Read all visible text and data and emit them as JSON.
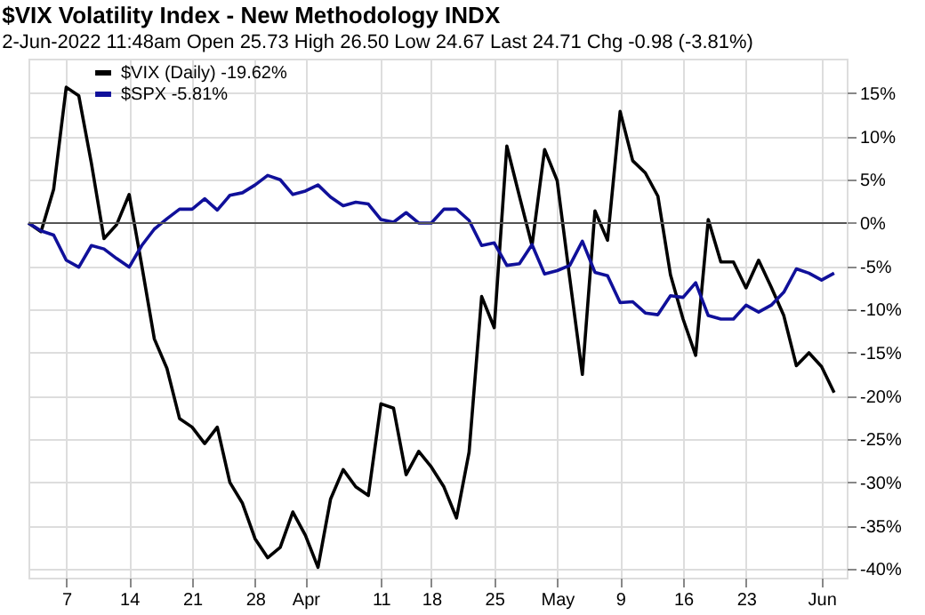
{
  "chart_data": {
    "type": "line",
    "title": "$VIX Volatility Index - New Methodology INDX",
    "subtitle": "2-Jun-2022 11:48am     Open 25.73  High 26.50  Low 24.67  Last 24.71  Chg -0.98 (-3.81%)",
    "categories": [
      null,
      null,
      null,
      "7",
      null,
      null,
      null,
      null,
      "14",
      null,
      null,
      null,
      null,
      "21",
      null,
      null,
      null,
      null,
      "28",
      null,
      null,
      null,
      "Apr",
      null,
      null,
      null,
      null,
      null,
      "11",
      null,
      null,
      null,
      "18",
      null,
      null,
      null,
      null,
      "25",
      null,
      null,
      null,
      null,
      "May",
      null,
      null,
      null,
      null,
      "9",
      null,
      null,
      null,
      null,
      "16",
      null,
      null,
      null,
      null,
      "23",
      null,
      null,
      null,
      null,
      null,
      "Jun",
      null
    ],
    "series": [
      {
        "name": "$VIX (Daily) -19.62%",
        "color": "#000000",
        "values": [
          0,
          -1.0,
          3.9,
          15.7,
          14.7,
          6.9,
          -1.8,
          -0.2,
          3.3,
          -4.9,
          -13.4,
          -16.8,
          -22.6,
          -23.6,
          -25.5,
          -23.6,
          -30.0,
          -32.4,
          -36.5,
          -38.7,
          -37.5,
          -33.4,
          -36.1,
          -39.8,
          -31.9,
          -28.5,
          -30.5,
          -31.5,
          -20.9,
          -21.4,
          -29.1,
          -26.4,
          -28.2,
          -30.5,
          -34.1,
          -26.5,
          -8.5,
          -12.1,
          8.9,
          3.1,
          -2.6,
          8.5,
          4.9,
          -6.4,
          -17.5,
          1.4,
          -2.0,
          12.9,
          7.2,
          5.8,
          3.1,
          -6.0,
          -11.1,
          -15.3,
          0.4,
          -4.5,
          -4.5,
          -7.5,
          -4.3,
          -7.4,
          -10.7,
          -16.5,
          -15.0,
          -16.6,
          -19.6
        ]
      },
      {
        "name": "$SPX -5.81%",
        "color": "#10109a",
        "values": [
          0,
          -0.9,
          -1.4,
          -4.3,
          -5.1,
          -2.6,
          -3.0,
          -4.1,
          -5.1,
          -2.6,
          -0.7,
          0.5,
          1.6,
          1.6,
          2.8,
          1.5,
          3.2,
          3.5,
          4.4,
          5.5,
          5.0,
          3.3,
          3.7,
          4.4,
          3.0,
          2.0,
          2.4,
          2.2,
          0.4,
          0.1,
          1.2,
          0,
          0,
          1.6,
          1.6,
          0.3,
          -2.6,
          -2.3,
          -4.9,
          -4.7,
          -2.5,
          -5.9,
          -5.5,
          -4.9,
          -2.1,
          -5.7,
          -6.1,
          -9.2,
          -9.1,
          -10.4,
          -10.6,
          -8.4,
          -8.6,
          -6.9,
          -10.7,
          -11.1,
          -11.1,
          -9.5,
          -10.3,
          -9.5,
          -8.0,
          -5.3,
          -5.8,
          -6.6,
          -5.8
        ]
      }
    ],
    "ylim": [
      -41,
      19
    ],
    "yticks": [
      {
        "value": 15,
        "label": "15%"
      },
      {
        "value": 10,
        "label": "10%"
      },
      {
        "value": 5,
        "label": "5%"
      },
      {
        "value": 0,
        "label": "0%"
      },
      {
        "value": -5,
        "label": "-5%"
      },
      {
        "value": -10,
        "label": "-10%"
      },
      {
        "value": -15,
        "label": "-15%"
      },
      {
        "value": -20,
        "label": "-20%"
      },
      {
        "value": -25,
        "label": "-25%"
      },
      {
        "value": -30,
        "label": "-30%"
      },
      {
        "value": -35,
        "label": "-35%"
      },
      {
        "value": -40,
        "label": "-40%"
      }
    ],
    "ref_lines": [
      {
        "axis": "y",
        "value": 0,
        "color": "#555555"
      }
    ],
    "grid": true,
    "legend": "top left",
    "marker": "none",
    "line_style": "solid"
  }
}
